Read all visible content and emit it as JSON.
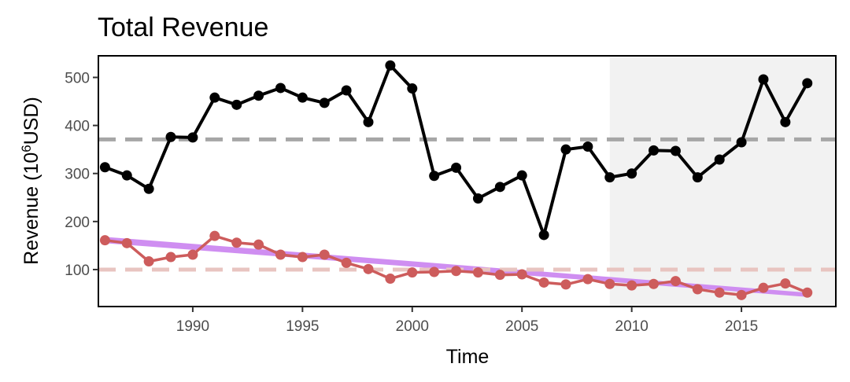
{
  "chart_data": {
    "type": "line",
    "title": "Total Revenue",
    "xlabel": "Time",
    "ylabel_main": "Revenue (10",
    "ylabel_sup": "6",
    "ylabel_unit": "USD)",
    "xlim": [
      1985.7,
      2019.3
    ],
    "ylim": [
      23,
      545
    ],
    "x_ticks": [
      1990,
      1995,
      2000,
      2005,
      2010,
      2015
    ],
    "y_ticks": [
      100,
      200,
      300,
      400,
      500
    ],
    "shaded_region": {
      "from": 2009,
      "to": 2019.3,
      "color": "#f2f2f2"
    },
    "reference_lines": [
      {
        "name": "mean-total",
        "y": 371,
        "color": "#a6a6a6"
      },
      {
        "name": "mean-secondary",
        "y": 100,
        "color": "#e8c4c0"
      }
    ],
    "trend_band": {
      "color": "#cc88f0",
      "x": [
        1986,
        2018
      ],
      "upper": [
        168,
        52
      ],
      "lower": [
        155,
        43
      ]
    },
    "series": [
      {
        "color": "#000000",
        "x": [
          1986,
          1987,
          1988,
          1989,
          1990,
          1991,
          1992,
          1993,
          1994,
          1995,
          1996,
          1997,
          1998,
          1999,
          2000,
          2001,
          2002,
          2003,
          2004,
          2005,
          2006,
          2007,
          2008,
          2009,
          2010,
          2011,
          2012,
          2013,
          2014,
          2015,
          2016,
          2017,
          2018
        ],
        "values": [
          313,
          296,
          268,
          376,
          375,
          458,
          443,
          462,
          478,
          458,
          447,
          473,
          407,
          525,
          477,
          295,
          312,
          248,
          272,
          296,
          172,
          350,
          356,
          292,
          300,
          348,
          347,
          292,
          329,
          365,
          496,
          407,
          488
        ]
      },
      {
        "color": "#cd5c5c",
        "x": [
          1986,
          1987,
          1988,
          1989,
          1990,
          1991,
          1992,
          1993,
          1994,
          1995,
          1996,
          1997,
          1998,
          1999,
          2000,
          2001,
          2002,
          2003,
          2004,
          2005,
          2006,
          2007,
          2008,
          2009,
          2010,
          2011,
          2012,
          2013,
          2014,
          2015,
          2016,
          2017,
          2018
        ],
        "values": [
          161,
          155,
          117,
          126,
          131,
          170,
          156,
          152,
          131,
          126,
          131,
          114,
          101,
          81,
          94,
          95,
          97,
          94,
          89,
          90,
          73,
          69,
          80,
          70,
          67,
          70,
          76,
          59,
          52,
          47,
          62,
          71,
          52
        ]
      }
    ]
  }
}
